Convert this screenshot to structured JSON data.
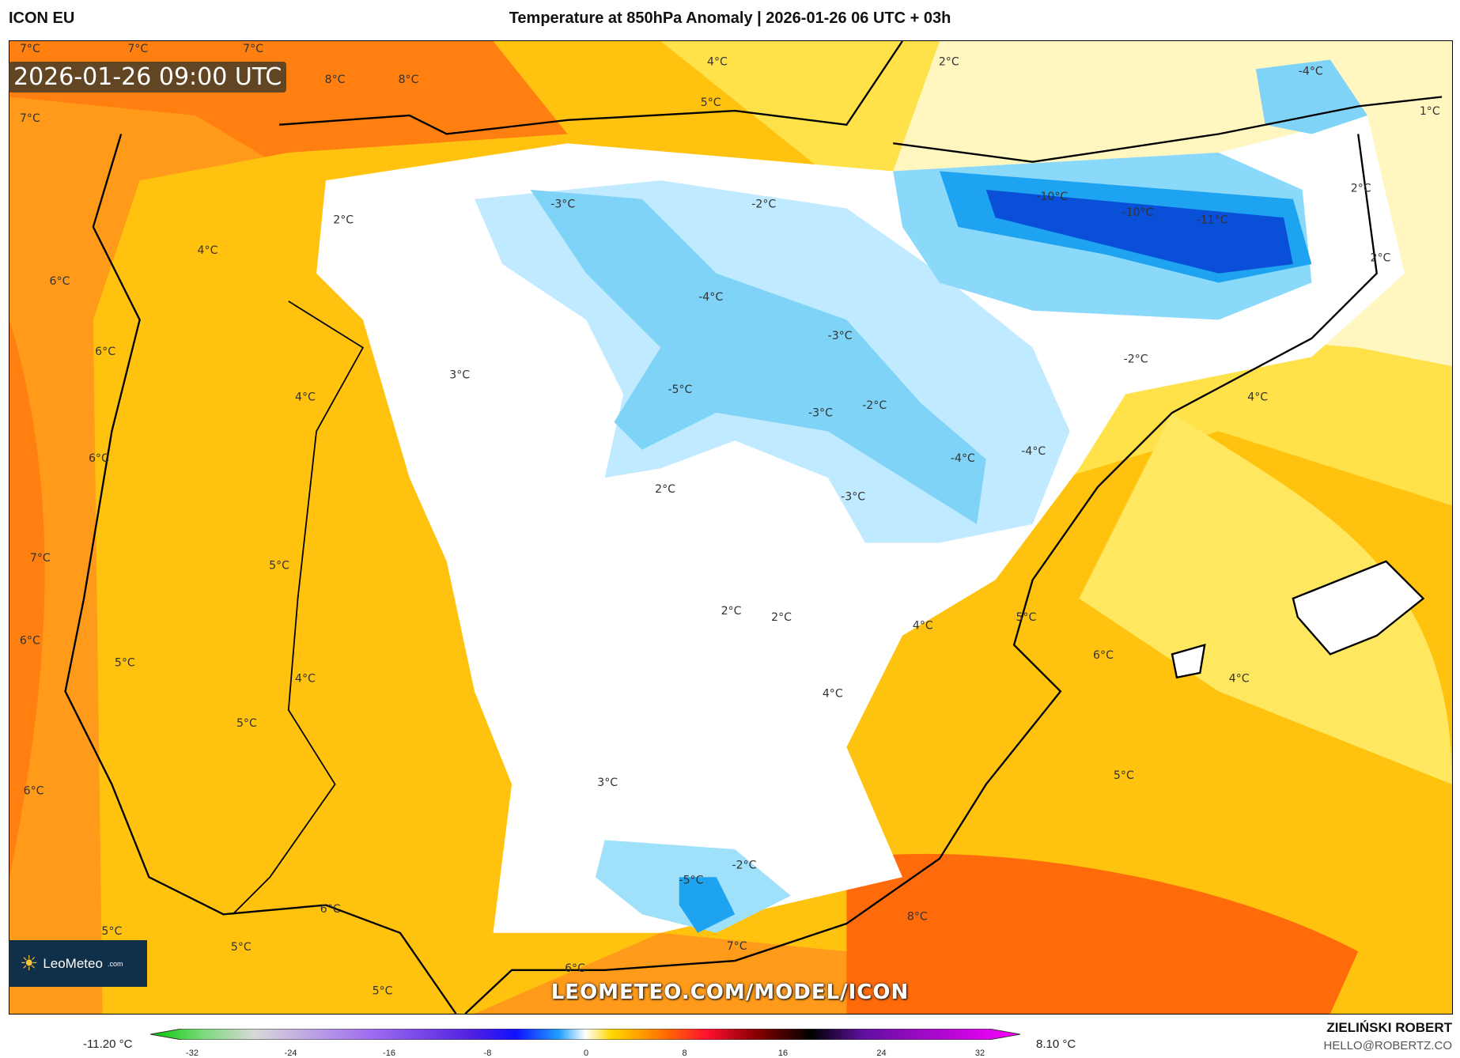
{
  "header": {
    "model": "ICON EU",
    "title": "Temperature at 850hPa Anomaly | 2026-01-26 06 UTC + 03h"
  },
  "valid_time": "2026-01-26 09:00 UTC",
  "logo": {
    "name": "LeoMeteo",
    "suffix": ".com"
  },
  "watermark_url": "LEOMETEO.COM/MODEL/ICON",
  "colorbar": {
    "min_label": "-11.20 °C",
    "max_label": "8.10 °C",
    "ticks": [
      "-32",
      "-24",
      "-16",
      "-8",
      "0",
      "8",
      "16",
      "24",
      "32"
    ]
  },
  "credit": {
    "author": "ZIELIŃSKI ROBERT",
    "email": "HELLO@ROBERTZ.CO"
  },
  "labels": [
    "7°C",
    "7°C",
    "7°C",
    "8°C",
    "8°C",
    "4°C",
    "2°C",
    "-4°C",
    "1°C",
    "7°C",
    "5°C",
    "-3°C",
    "-2°C",
    "-10°C",
    "-10°C",
    "-11°C",
    "2°C",
    "2°C",
    "4°C",
    "2°C",
    "6°C",
    "-4°C",
    "-3°C",
    "6°C",
    "-2°C",
    "3°C",
    "4°C",
    "4°C",
    "-5°C",
    "-3°C",
    "-2°C",
    "6°C",
    "-4°C",
    "-4°C",
    "2°C",
    "-3°C",
    "7°C",
    "5°C",
    "2°C",
    "2°C",
    "5°C",
    "4°C",
    "6°C",
    "6°C",
    "5°C",
    "4°C",
    "4°C",
    "4°C",
    "5°C",
    "3°C",
    "5°C",
    "6°C",
    "-5°C",
    "-2°C",
    "8°C",
    "6°C",
    "5°C",
    "5°C",
    "7°C",
    "6°C",
    "5°C"
  ]
}
